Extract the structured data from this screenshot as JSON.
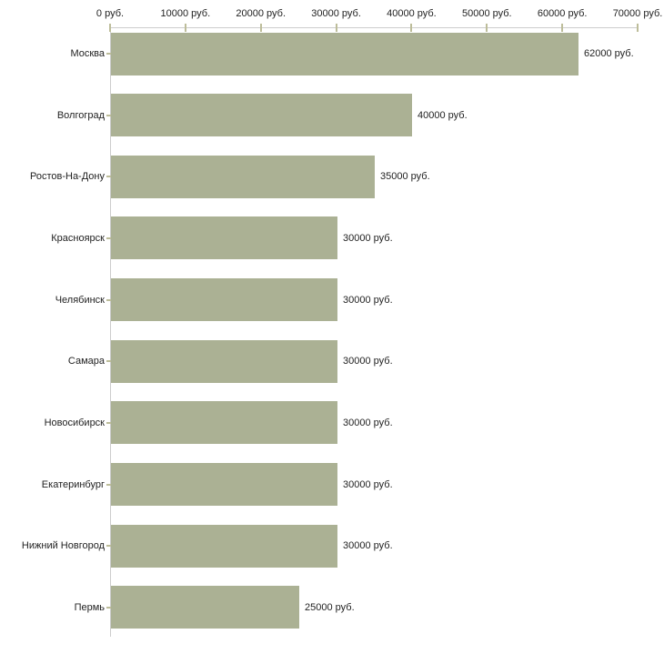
{
  "chart_data": {
    "type": "bar",
    "orientation": "horizontal",
    "title": "",
    "xlabel": "",
    "ylabel": "",
    "unit": "руб.",
    "categories": [
      "Москва",
      "Волгоград",
      "Ростов-На-Дону",
      "Красноярск",
      "Челябинск",
      "Самара",
      "Новосибирск",
      "Екатеринбург",
      "Нижний Новгород",
      "Пермь"
    ],
    "values": [
      62000,
      40000,
      35000,
      30000,
      30000,
      30000,
      30000,
      30000,
      30000,
      25000
    ],
    "value_labels": [
      "62000 руб.",
      "40000 руб.",
      "35000 руб.",
      "30000 руб.",
      "30000 руб.",
      "30000 руб.",
      "30000 руб.",
      "30000 руб.",
      "30000 руб.",
      "25000 руб."
    ],
    "x_tick_values": [
      0,
      10000,
      20000,
      30000,
      40000,
      50000,
      60000,
      70000
    ],
    "x_tick_labels": [
      "0 руб.",
      "10000 руб.",
      "20000 руб.",
      "30000 руб.",
      "40000 руб.",
      "50000 руб.",
      "60000 руб.",
      "70000 руб."
    ],
    "xlim": [
      0,
      70000
    ],
    "grid": false,
    "legend": "none",
    "colors": {
      "bar_fill": "#abb194",
      "axis_line": "#cccccc",
      "tick_mark": "#bdbd9a",
      "text": "#222222",
      "background": "#ffffff"
    }
  }
}
